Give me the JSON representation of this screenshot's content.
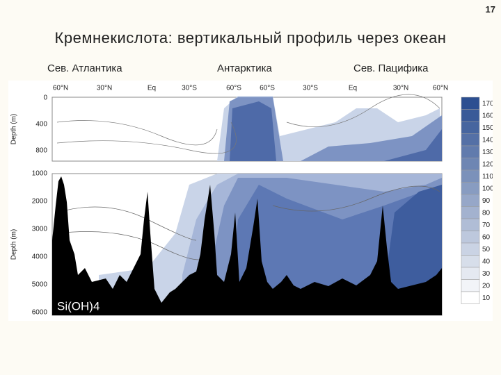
{
  "slide_number": "17",
  "title": "Кремнекислота: вертикальный профиль через океан",
  "regions": [
    "Сев. Атлантика",
    "Антарктика",
    "Сев. Пацифика"
  ],
  "figure": {
    "latitudes": [
      "60°N",
      "30°N",
      "Eq",
      "30°S",
      "60°S",
      "60°S",
      "30°S",
      "Eq",
      "30°N",
      "60°N"
    ],
    "top_depths": [
      "0",
      "400",
      "800"
    ],
    "bottom_depths": [
      "1000",
      "2000",
      "3000",
      "4000",
      "5000",
      "6000"
    ],
    "depth_label": "Depth (m)",
    "variable": "Si(OH)4",
    "colorbar": [
      "170",
      "160",
      "150",
      "140",
      "130",
      "120",
      "110",
      "100",
      "90",
      "80",
      "70",
      "60",
      "50",
      "40",
      "30",
      "20",
      "10"
    ]
  }
}
